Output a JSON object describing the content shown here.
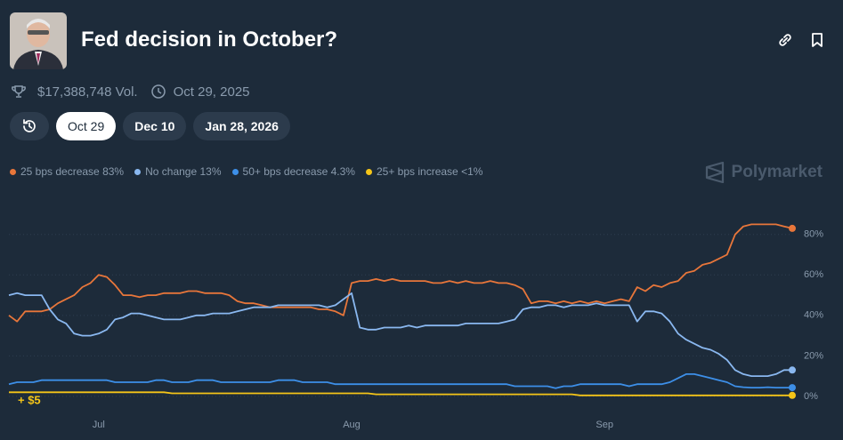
{
  "header": {
    "title": "Fed decision in October?",
    "volume": "$17,388,748 Vol.",
    "end_date": "Oct 29, 2025"
  },
  "tabs": [
    "Oct 29",
    "Dec 10",
    "Jan 28, 2026"
  ],
  "brand": "Polymarket",
  "chart_data": {
    "type": "line",
    "annotation": "+ $5",
    "categories": [
      null,
      null,
      null,
      null,
      null,
      null,
      null,
      null,
      null,
      null,
      null,
      "Jul",
      null,
      null,
      null,
      null,
      null,
      null,
      null,
      null,
      null,
      null,
      null,
      null,
      null,
      null,
      null,
      null,
      null,
      null,
      null,
      null,
      null,
      null,
      null,
      null,
      null,
      null,
      null,
      null,
      null,
      null,
      "Aug",
      null,
      null,
      null,
      null,
      null,
      null,
      null,
      null,
      null,
      null,
      null,
      null,
      null,
      null,
      null,
      null,
      null,
      null,
      null,
      null,
      null,
      null,
      null,
      null,
      null,
      null,
      null,
      null,
      null,
      null,
      "Sep",
      null,
      null,
      null,
      null,
      null,
      null,
      null,
      null,
      null,
      null,
      null,
      null,
      null,
      null,
      null,
      null,
      null,
      null,
      null,
      null,
      null,
      null,
      null
    ],
    "ylim": [
      -4,
      90
    ],
    "yticks": [
      {
        "value": 0,
        "label": "0%"
      },
      {
        "value": 20,
        "label": "20%"
      },
      {
        "value": 40,
        "label": "40%"
      },
      {
        "value": 60,
        "label": "60%"
      },
      {
        "value": 80,
        "label": "80%"
      }
    ],
    "grid": true,
    "series": [
      {
        "name": "25 bps decrease",
        "value_label": "83%",
        "color": "#e8763a",
        "values": [
          40,
          37,
          42,
          42,
          42,
          43,
          46,
          48,
          50,
          54,
          56,
          60,
          59,
          55,
          50,
          50,
          49,
          50,
          50,
          51,
          51,
          51,
          52,
          52,
          51,
          51,
          51,
          50,
          47,
          46,
          46,
          45,
          44,
          44,
          44,
          44,
          44,
          44,
          43,
          43,
          42,
          40,
          56,
          57,
          57,
          58,
          57,
          58,
          57,
          57,
          57,
          57,
          56,
          56,
          57,
          56,
          57,
          56,
          56,
          57,
          56,
          56,
          55,
          53,
          46,
          47,
          47,
          46,
          47,
          46,
          47,
          46,
          47,
          46,
          47,
          48,
          47,
          54,
          52,
          55,
          54,
          56,
          57,
          61,
          62,
          65,
          66,
          68,
          70,
          80,
          84,
          85,
          85,
          85,
          85,
          84,
          83
        ]
      },
      {
        "name": "No change",
        "value_label": "13%",
        "color": "#8ab8f0",
        "values": [
          50,
          51,
          50,
          50,
          50,
          43,
          38,
          36,
          31,
          30,
          30,
          31,
          33,
          38,
          39,
          41,
          41,
          40,
          39,
          38,
          38,
          38,
          39,
          40,
          40,
          41,
          41,
          41,
          42,
          43,
          44,
          44,
          44,
          45,
          45,
          45,
          45,
          45,
          45,
          44,
          45,
          48,
          51,
          34,
          33,
          33,
          34,
          34,
          34,
          35,
          34,
          35,
          35,
          35,
          35,
          35,
          36,
          36,
          36,
          36,
          36,
          37,
          38,
          43,
          44,
          44,
          45,
          45,
          44,
          45,
          45,
          45,
          46,
          45,
          45,
          45,
          45,
          37,
          42,
          42,
          41,
          37,
          31,
          28,
          26,
          24,
          23,
          21,
          18,
          13,
          11,
          10,
          10,
          10,
          11,
          13,
          13
        ]
      },
      {
        "name": "50+ bps decrease",
        "value_label": "4.3%",
        "color": "#3d8fe8",
        "values": [
          6,
          7,
          7,
          7,
          8,
          8,
          8,
          8,
          8,
          8,
          8,
          8,
          8,
          7,
          7,
          7,
          7,
          7,
          8,
          8,
          7,
          7,
          7,
          8,
          8,
          8,
          7,
          7,
          7,
          7,
          7,
          7,
          7,
          8,
          8,
          8,
          7,
          7,
          7,
          7,
          6,
          6,
          6,
          6,
          6,
          6,
          6,
          6,
          6,
          6,
          6,
          6,
          6,
          6,
          6,
          6,
          6,
          6,
          6,
          6,
          6,
          6,
          5,
          5,
          5,
          5,
          5,
          4,
          5,
          5,
          6,
          6,
          6,
          6,
          6,
          6,
          5,
          6,
          6,
          6,
          6,
          7,
          9,
          11,
          11,
          10,
          9,
          8,
          7,
          5,
          4.5,
          4.3,
          4.3,
          4.5,
          4.3,
          4.3,
          4.3
        ]
      },
      {
        "name": "25+ bps increase",
        "value_label": "<1%",
        "color": "#f5c518",
        "values": [
          2,
          2,
          2,
          2,
          2,
          2,
          2,
          2,
          2,
          2,
          2,
          2,
          2,
          2,
          2,
          2,
          2,
          2,
          2,
          2,
          1.5,
          1.5,
          1.5,
          1.5,
          1.5,
          1.5,
          1.5,
          1.5,
          1.5,
          1.5,
          1.5,
          1.5,
          1.5,
          1.5,
          1.5,
          1.5,
          1.5,
          1.5,
          1.5,
          1.5,
          1.5,
          1.5,
          1.5,
          1.5,
          1.5,
          1,
          1,
          1,
          1,
          1,
          1,
          1,
          1,
          1,
          1,
          1,
          1,
          1,
          1,
          1,
          1,
          1,
          1,
          1,
          1,
          1,
          1,
          1,
          1,
          1,
          0.5,
          0.5,
          0.5,
          0.5,
          0.5,
          0.5,
          0.5,
          0.5,
          0.5,
          0.5,
          0.5,
          0.5,
          0.5,
          0.5,
          0.5,
          0.5,
          0.5,
          0.5,
          0.5,
          0.5,
          0.5,
          0.5,
          0.5,
          0.5,
          0.5,
          0.5,
          0.5
        ]
      }
    ]
  }
}
